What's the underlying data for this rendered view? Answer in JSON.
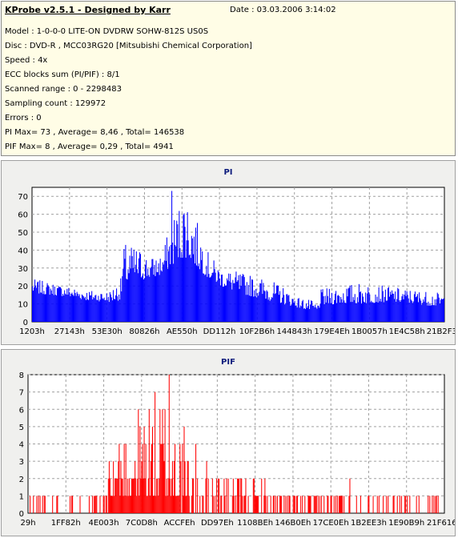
{
  "header": {
    "title": "KProbe v2.5.1 - Designed by Karr",
    "date": "Date : 03.03.2006 3:14:02",
    "lines": [
      "Model : 1-0-0-0 LITE-ON DVDRW SOHW-812S  US0S",
      "Disc : DVD-R , MCC03RG20 [Mitsubishi Chemical Corporation]",
      "Speed : 4x",
      "ECC blocks sum (PI/PIF) : 8/1",
      "Scanned range : 0 - 2298483",
      "Sampling count : 129972",
      "Errors : 0",
      "PI Max= 73 , Average= 8,46 , Total= 146538",
      "PIF Max= 8 , Average= 0,29 , Total= 4941"
    ]
  },
  "chart_data": [
    {
      "type": "bar",
      "title": "PI",
      "color": "#0000ff",
      "ylim": [
        0,
        75
      ],
      "yticks": [
        0,
        10,
        20,
        30,
        40,
        50,
        60,
        70
      ],
      "xticks": [
        "1203h",
        "27143h",
        "53E30h",
        "80826h",
        "AE550h",
        "DD112h",
        "10F2B6h",
        "144843h",
        "179E4Eh",
        "1B0057h",
        "1E4C58h",
        "21B2F3h"
      ],
      "grid": true,
      "profile": [
        [
          0,
          16,
          24
        ],
        [
          6,
          15,
          22
        ],
        [
          12,
          14,
          20
        ],
        [
          18,
          12,
          18
        ],
        [
          26,
          11,
          17
        ],
        [
          30,
          12,
          24
        ],
        [
          31,
          20,
          44
        ],
        [
          36,
          23,
          42
        ],
        [
          40,
          24,
          36
        ],
        [
          44,
          26,
          38
        ],
        [
          48,
          32,
          60
        ],
        [
          52,
          36,
          73
        ],
        [
          56,
          30,
          56
        ],
        [
          60,
          24,
          38
        ],
        [
          64,
          20,
          30
        ],
        [
          70,
          16,
          28
        ],
        [
          75,
          14,
          26
        ],
        [
          80,
          12,
          24
        ],
        [
          85,
          10,
          20
        ],
        [
          90,
          8,
          14
        ],
        [
          95,
          6,
          12
        ],
        [
          97,
          5,
          10
        ],
        [
          98,
          9,
          18
        ],
        [
          104,
          10,
          20
        ],
        [
          112,
          10,
          22
        ],
        [
          120,
          11,
          20
        ],
        [
          130,
          10,
          18
        ],
        [
          140,
          8,
          16
        ]
      ],
      "num_samples": 500,
      "max": 73
    },
    {
      "type": "bar",
      "title": "PIF",
      "color": "#ff0000",
      "ylim": [
        0,
        8
      ],
      "yticks": [
        0,
        1,
        2,
        3,
        4,
        5,
        6,
        7,
        8
      ],
      "xticks": [
        "29h",
        "1FF82h",
        "4E003h",
        "7C0D8h",
        "ACCFEh",
        "DD97Eh",
        "1108BEh",
        "146B0Eh",
        "17CE0Eh",
        "1B2EE3h",
        "1E90B9h",
        "21F616h"
      ],
      "grid": true,
      "profile": [
        [
          0,
          0,
          1
        ],
        [
          25,
          0,
          1
        ],
        [
          30,
          1,
          5
        ],
        [
          40,
          1,
          7
        ],
        [
          46,
          1,
          8
        ],
        [
          55,
          0,
          4
        ],
        [
          60,
          0,
          3
        ],
        [
          70,
          0,
          2
        ],
        [
          80,
          0,
          2
        ],
        [
          95,
          0,
          1
        ],
        [
          110,
          0,
          2
        ],
        [
          120,
          0,
          1
        ],
        [
          140,
          0,
          1
        ]
      ],
      "num_samples": 500,
      "max": 8
    }
  ]
}
